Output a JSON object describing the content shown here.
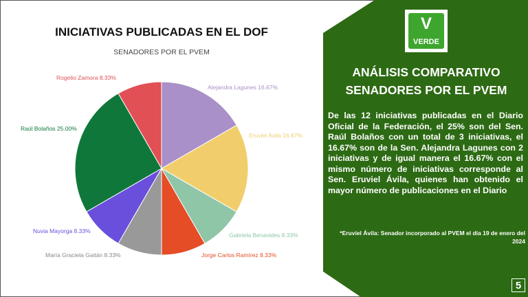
{
  "chart_data": {
    "type": "pie",
    "title": "INICIATIVAS PUBLICADAS EN EL DOF",
    "subtitle": "SENADORES POR EL PVEM",
    "slices": [
      {
        "label": "Alejandra Lagunes",
        "value": 16.67,
        "text": "Alejandra Lagunes 16.67%",
        "color": "#a990c8"
      },
      {
        "label": "Eruviel Ávila",
        "value": 16.67,
        "text": "Eruviel Ávila 16.67%",
        "color": "#f1ce6b"
      },
      {
        "label": "Gabriela Benavides",
        "value": 8.33,
        "text": "Gabriela Benavides 8.33%",
        "color": "#8fc6a8"
      },
      {
        "label": "Jorge Carlos Ramírez",
        "value": 8.33,
        "text": "Jorge Carlos Ramírez 8.33%",
        "color": "#e44d26"
      },
      {
        "label": "María Graciela Gaitán",
        "value": 8.33,
        "text": "María Graciela Gaitán 8.33%",
        "color": "#999999"
      },
      {
        "label": "Nuvia Mayorga",
        "value": 8.33,
        "text": "Nuvia Mayorga 8.33%",
        "color": "#6a4fdc"
      },
      {
        "label": "Raúl Bolaños",
        "value": 25.0,
        "text": "Raúl Bolaños 25.00%",
        "color": "#10773a"
      },
      {
        "label": "Rogelio Zamora",
        "value": 8.33,
        "text": "Rogelio Zamora 8.33%",
        "color": "#e05055"
      }
    ]
  },
  "panel": {
    "logo_text": "VERDE",
    "title_line1": "ANÁLISIS COMPARATIVO",
    "title_line2": "SENADORES POR EL PVEM",
    "body": "De las 12 iniciativas publicadas en el Diario Oficial de la Federación, el 25%  son del Sen. Raúl Bolaños con un total de 3 iniciativas, el 16.67% son de la Sen. Alejandra Lagunes con 2 iniciativas y de igual manera el 16.67% con el mismo número de iniciativas corresponde al Sen. Eruviel Ávila, quienes han obtenido el mayor número de publicaciones en el Diario",
    "note": "*Eruviel Ávila: Senador incorporado al PVEM el día 19 de enero del 2024",
    "page_number": "5",
    "background": "#2d6a14"
  }
}
